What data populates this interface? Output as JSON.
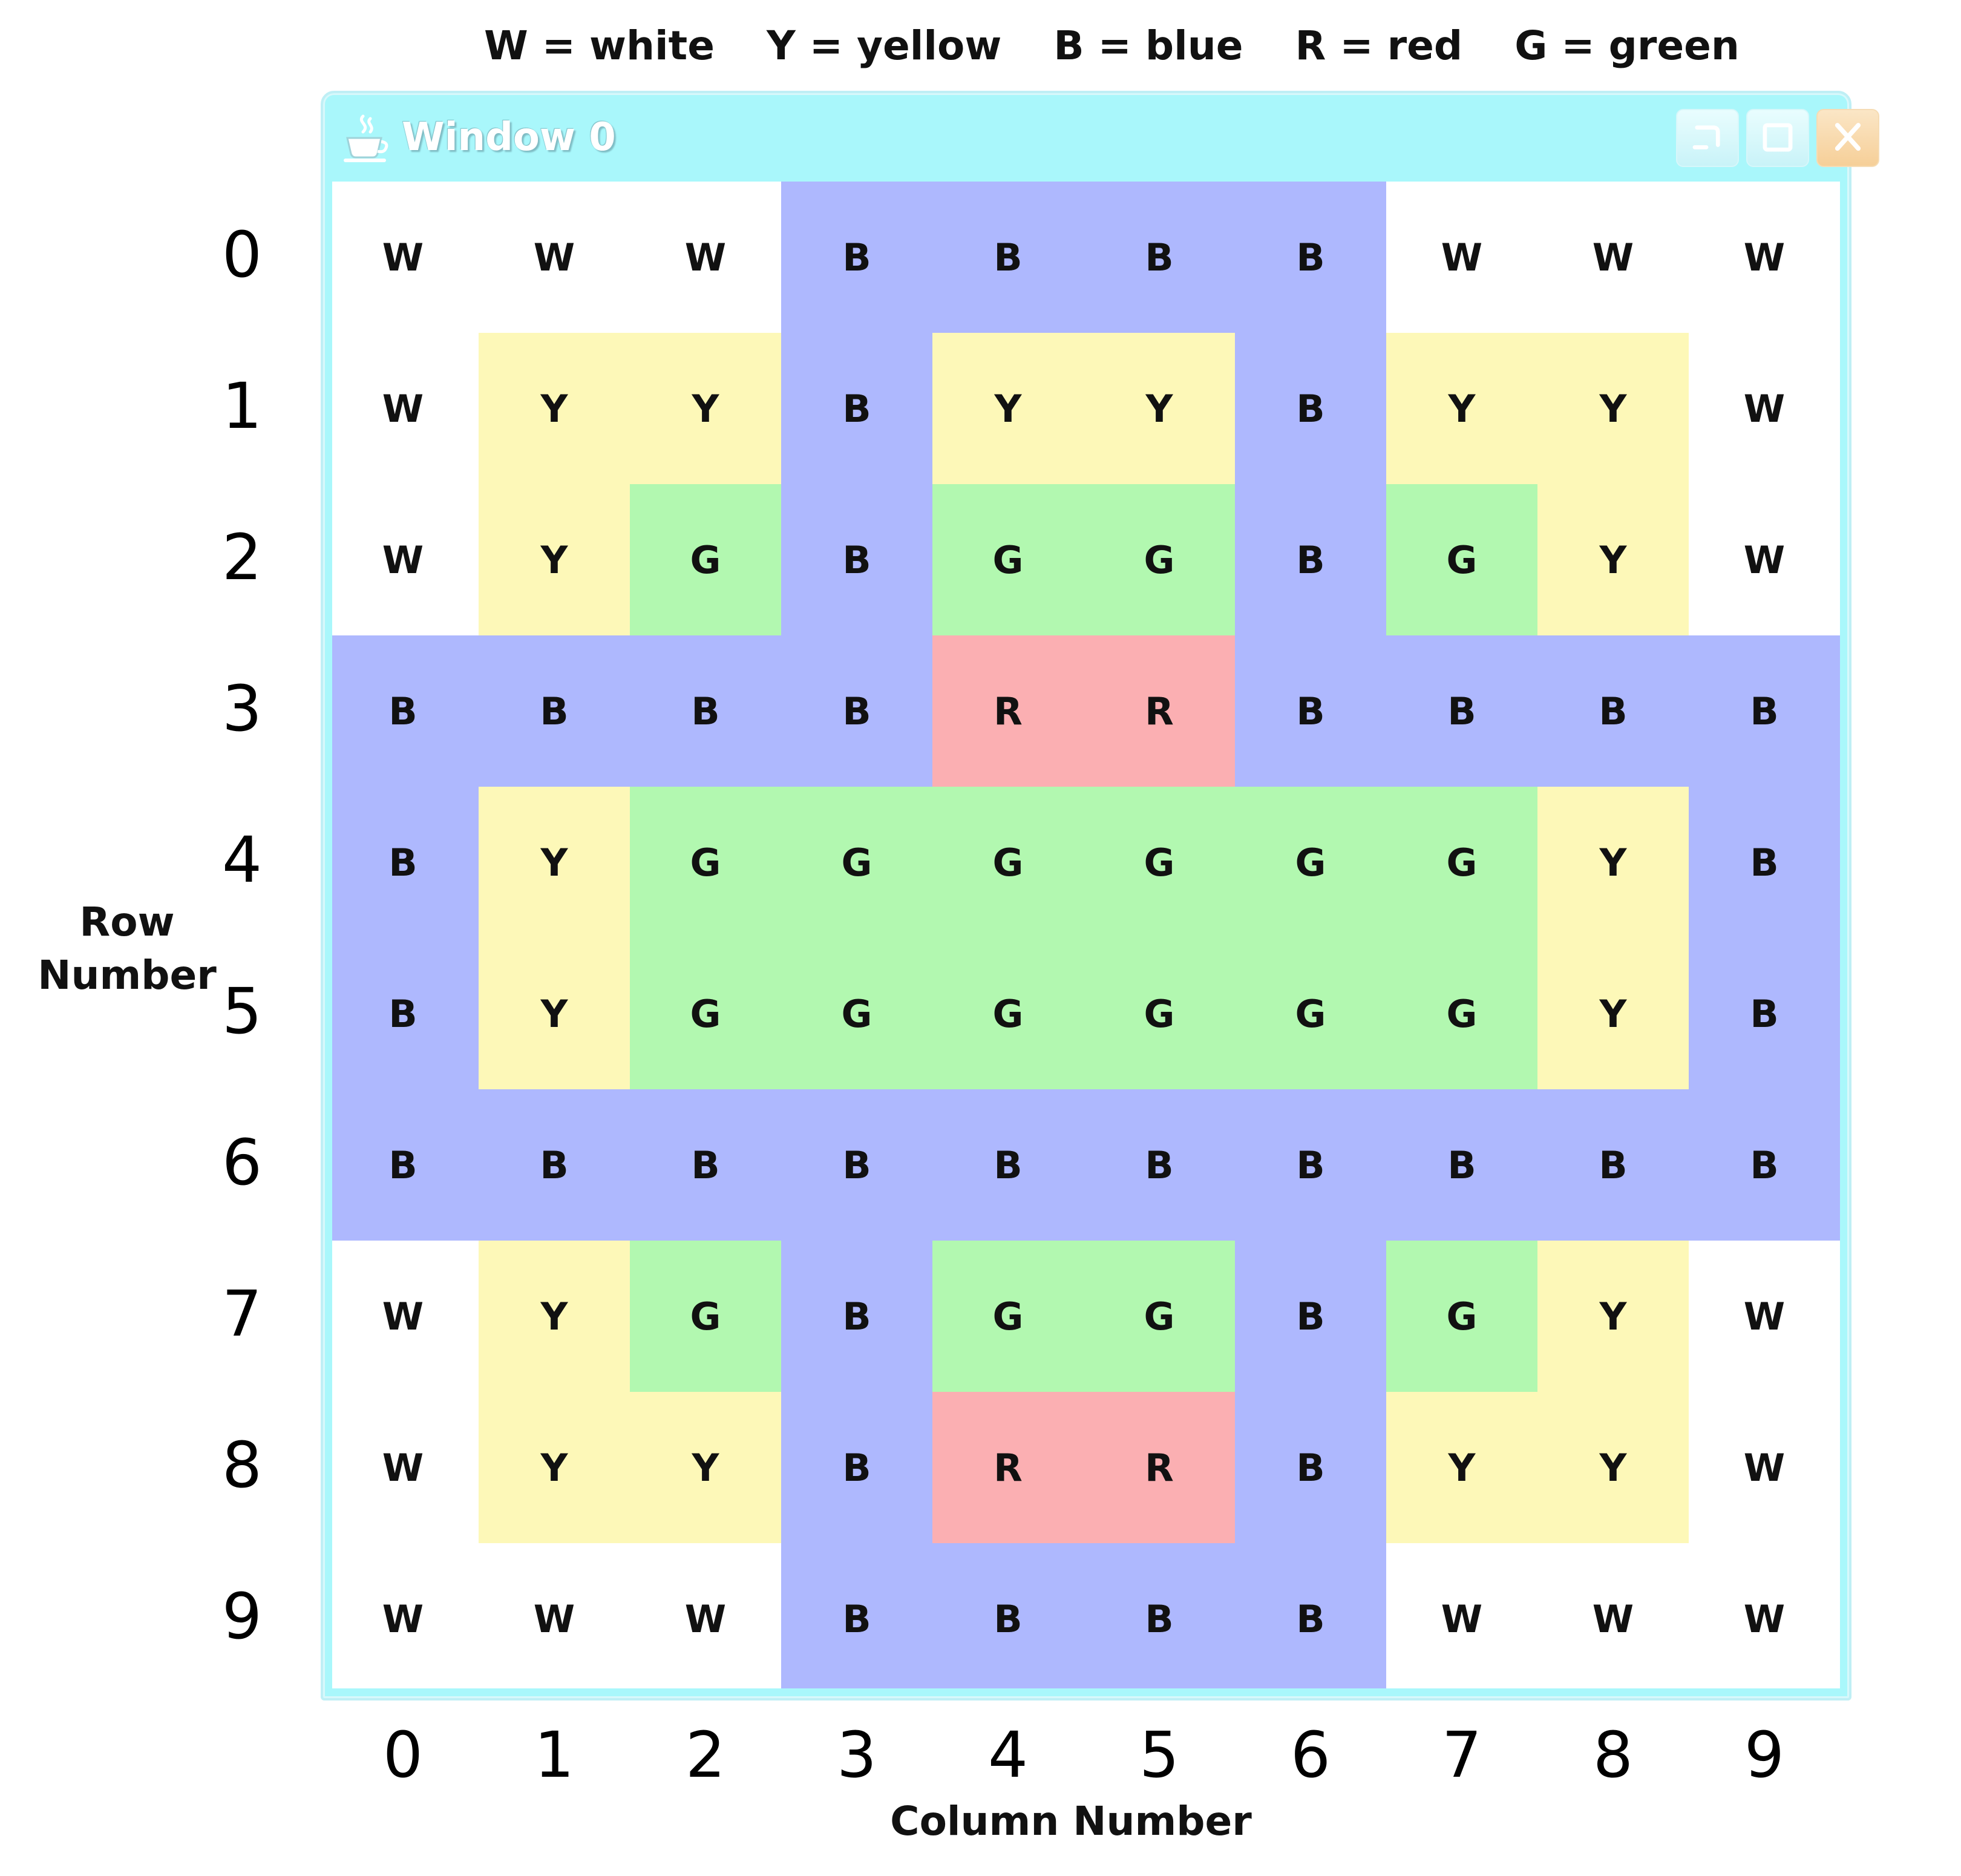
{
  "legend": [
    {
      "text": "W = white"
    },
    {
      "text": "Y = yellow"
    },
    {
      "text": "B = blue"
    },
    {
      "text": "R = red"
    },
    {
      "text": "G = green"
    }
  ],
  "window": {
    "title": "Window 0",
    "icon": "java-cup-icon",
    "buttons": [
      "minimize-button",
      "maximize-button",
      "close-button"
    ]
  },
  "colors": {
    "W": "#ffffff",
    "Y": "#fdf8b8",
    "B": "#aeb8fe",
    "R": "#fbafb2",
    "G": "#b2f8b0"
  },
  "grid": [
    [
      "W",
      "W",
      "W",
      "B",
      "B",
      "B",
      "B",
      "W",
      "W",
      "W"
    ],
    [
      "W",
      "Y",
      "Y",
      "B",
      "Y",
      "Y",
      "B",
      "Y",
      "Y",
      "W"
    ],
    [
      "W",
      "Y",
      "G",
      "B",
      "G",
      "G",
      "B",
      "G",
      "Y",
      "W"
    ],
    [
      "B",
      "B",
      "B",
      "B",
      "R",
      "R",
      "B",
      "B",
      "B",
      "B"
    ],
    [
      "B",
      "Y",
      "G",
      "G",
      "G",
      "G",
      "G",
      "G",
      "Y",
      "B"
    ],
    [
      "B",
      "Y",
      "G",
      "G",
      "G",
      "G",
      "G",
      "G",
      "Y",
      "B"
    ],
    [
      "B",
      "B",
      "B",
      "B",
      "B",
      "B",
      "B",
      "B",
      "B",
      "B"
    ],
    [
      "W",
      "Y",
      "G",
      "B",
      "G",
      "G",
      "B",
      "G",
      "Y",
      "W"
    ],
    [
      "W",
      "Y",
      "Y",
      "B",
      "R",
      "R",
      "B",
      "Y",
      "Y",
      "W"
    ],
    [
      "W",
      "W",
      "W",
      "B",
      "B",
      "B",
      "B",
      "W",
      "W",
      "W"
    ]
  ],
  "row_numbers": [
    "0",
    "1",
    "2",
    "3",
    "4",
    "5",
    "6",
    "7",
    "8",
    "9"
  ],
  "column_numbers": [
    "0",
    "1",
    "2",
    "3",
    "4",
    "5",
    "6",
    "7",
    "8",
    "9"
  ],
  "row_axis_label": [
    "Row",
    "Number"
  ],
  "column_axis_label": "Column Number"
}
